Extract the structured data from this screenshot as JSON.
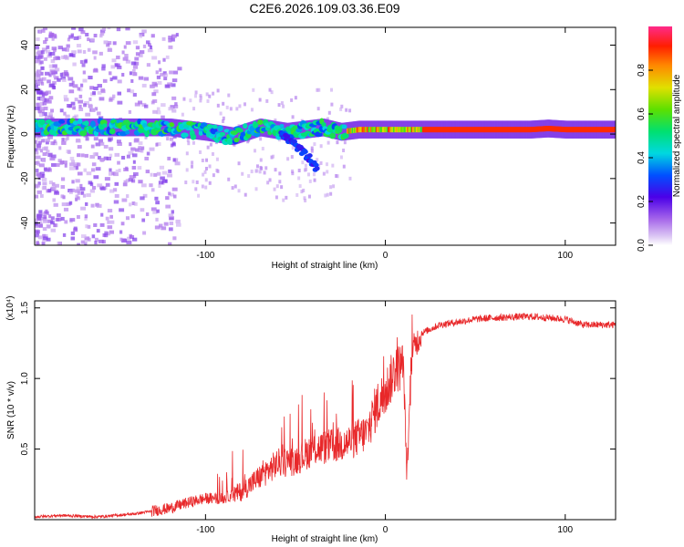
{
  "figure_title": "C2E6.2026.109.03.36.E09",
  "chart_data": [
    {
      "type": "heatmap",
      "xlabel": "Height of straight line (km)",
      "ylabel": "Frequency (Hz)",
      "xlim": [
        -195,
        128
      ],
      "ylim": [
        -50,
        48
      ],
      "x_ticks": [
        -100,
        0,
        100
      ],
      "y_ticks": [
        -40,
        -20,
        0,
        20,
        40
      ],
      "colorbar": {
        "label": "Normalized spectral amplitude",
        "range": [
          0.0,
          1.0
        ],
        "ticks": [
          0.0,
          0.2,
          0.4,
          0.6,
          0.8
        ],
        "tick_labels": [
          "0.0",
          "0.2",
          "0.4",
          "0.6",
          "0.8"
        ]
      },
      "ridge": {
        "x": [
          -195,
          -150,
          -120,
          -100,
          -85,
          -70,
          -55,
          -45,
          -35,
          -25,
          -15,
          -5,
          0,
          10,
          20,
          40,
          60,
          80,
          90,
          100,
          110,
          128
        ],
        "freq_hz": [
          3,
          3,
          3,
          1,
          -1,
          3,
          1,
          2,
          3,
          1,
          2,
          2,
          2,
          2,
          2,
          2,
          2,
          2,
          2.5,
          2,
          2,
          2
        ]
      },
      "branch": {
        "x": [
          -58,
          -50,
          -42,
          -38
        ],
        "freq_hz": [
          0,
          -5,
          -11,
          -16
        ]
      }
    },
    {
      "type": "line",
      "xlabel": "Height of straight line (km)",
      "ylabel": "SNR (10 * v/v)",
      "multiplier_label": "(x10⁴)",
      "xlim": [
        -195,
        128
      ],
      "ylim": [
        0,
        1.55
      ],
      "x_ticks": [
        -100,
        0,
        100
      ],
      "y_ticks": [
        0.5,
        1.0,
        1.5
      ],
      "y_tick_labels": [
        "0.5",
        "1.0",
        "1.5"
      ],
      "color": "#e8282a",
      "series": [
        {
          "name": "SNR",
          "x": [
            -195,
            -180,
            -160,
            -140,
            -130,
            -120,
            -110,
            -100,
            -90,
            -80,
            -70,
            -60,
            -50,
            -40,
            -30,
            -20,
            -10,
            -5,
            0,
            5,
            10,
            12,
            15,
            20,
            30,
            40,
            50,
            60,
            80,
            100,
            110,
            120,
            128
          ],
          "y": [
            0.02,
            0.03,
            0.02,
            0.04,
            0.06,
            0.08,
            0.12,
            0.15,
            0.15,
            0.2,
            0.3,
            0.4,
            0.42,
            0.5,
            0.52,
            0.55,
            0.62,
            0.8,
            0.9,
            1.05,
            1.1,
            0.3,
            1.2,
            1.32,
            1.38,
            1.4,
            1.42,
            1.43,
            1.44,
            1.42,
            1.38,
            1.38,
            1.38
          ]
        }
      ]
    }
  ]
}
